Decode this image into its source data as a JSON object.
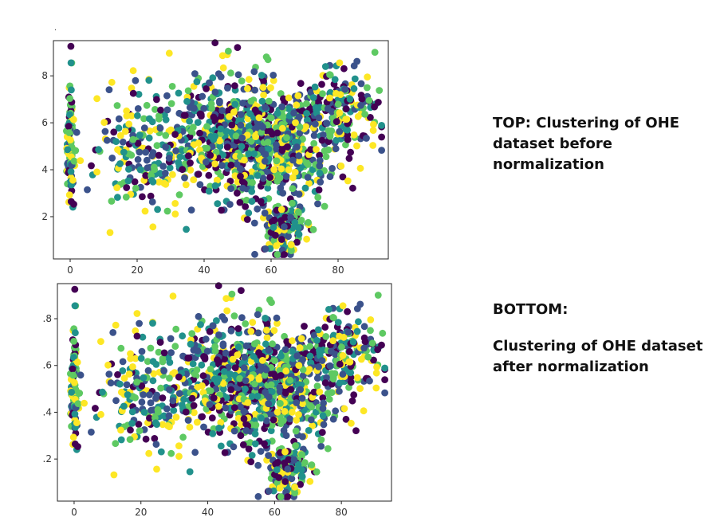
{
  "stray_mark": ".",
  "captions": {
    "top": "TOP: Clustering of OHE dataset before normalization",
    "bottom_title": "BOTTOM:",
    "bottom_text": "Clustering of OHE dataset after normalization"
  },
  "colors": [
    "#440154",
    "#3b528b",
    "#21918c",
    "#5ec962",
    "#fde725"
  ],
  "chart_data": [
    {
      "type": "scatter",
      "title": "",
      "xlabel": "",
      "ylabel": "",
      "xlim": [
        -5,
        95
      ],
      "ylim": [
        0.2,
        9.5
      ],
      "xticks": [
        0,
        20,
        40,
        60,
        80
      ],
      "xtick_labels": [
        "0",
        "20",
        "40",
        "60",
        "80"
      ],
      "yticks": [
        2,
        4,
        6,
        8
      ],
      "ytick_labels": [
        "2",
        "4",
        "6",
        "8"
      ],
      "grid": false,
      "legend": "none",
      "clusters": [
        {
          "name": "",
          "x_center": 0,
          "x_spread": 0.5,
          "y_center": 5.2,
          "y_spread": 1.4,
          "n": 90
        },
        {
          "name": "",
          "x_center": 55,
          "x_spread": 12,
          "y_center": 5.3,
          "y_spread": 1.3,
          "n": 900
        },
        {
          "name": "",
          "x_center": 22,
          "x_spread": 9,
          "y_center": 4.8,
          "y_spread": 1.3,
          "n": 200
        },
        {
          "name": "",
          "x_center": 64,
          "x_spread": 3,
          "y_center": 1.5,
          "y_spread": 0.6,
          "n": 150
        },
        {
          "name": "",
          "x_center": 80,
          "x_spread": 6,
          "y_center": 6.5,
          "y_spread": 1.0,
          "n": 160
        }
      ]
    },
    {
      "type": "scatter",
      "title": "",
      "xlabel": "",
      "ylabel": "",
      "xlim": [
        -5,
        95
      ],
      "ylim": [
        0.02,
        0.95
      ],
      "xticks": [
        0,
        20,
        40,
        60,
        80
      ],
      "xtick_labels": [
        "0",
        "20",
        "40",
        "60",
        "80"
      ],
      "yticks": [
        0.2,
        0.4,
        0.6,
        0.8
      ],
      "ytick_labels": [
        ".2",
        ".4",
        ".6",
        ".8"
      ],
      "grid": false,
      "legend": "none",
      "clusters": [
        {
          "name": "",
          "x_center": 0,
          "x_spread": 0.5,
          "y_center": 0.52,
          "y_spread": 0.14,
          "n": 90
        },
        {
          "name": "",
          "x_center": 55,
          "x_spread": 12,
          "y_center": 0.53,
          "y_spread": 0.13,
          "n": 900
        },
        {
          "name": "",
          "x_center": 22,
          "x_spread": 9,
          "y_center": 0.48,
          "y_spread": 0.13,
          "n": 200
        },
        {
          "name": "",
          "x_center": 64,
          "x_spread": 3,
          "y_center": 0.15,
          "y_spread": 0.06,
          "n": 150
        },
        {
          "name": "",
          "x_center": 80,
          "x_spread": 6,
          "y_center": 0.65,
          "y_spread": 0.1,
          "n": 160
        }
      ]
    }
  ]
}
